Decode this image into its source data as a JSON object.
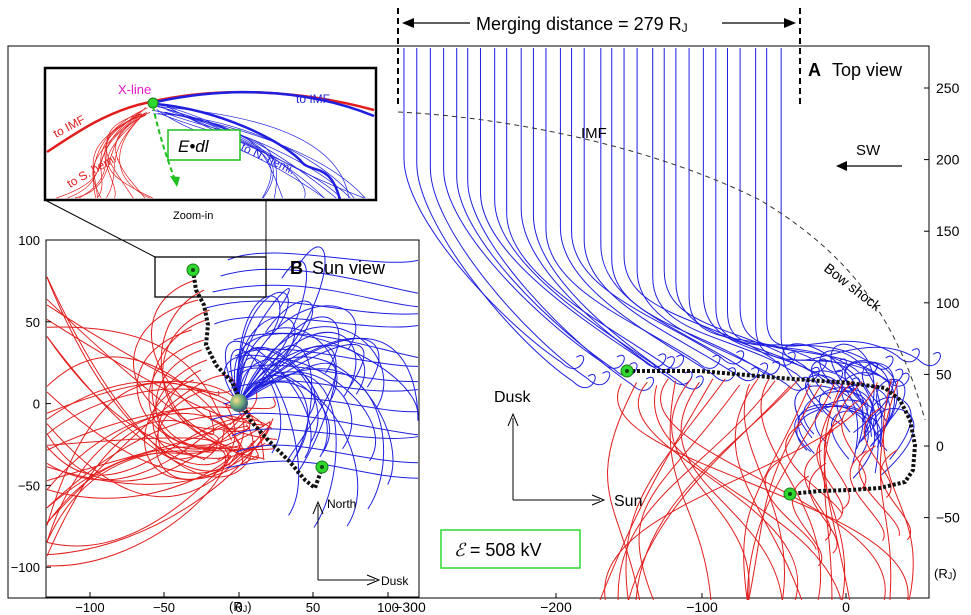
{
  "panel_a": {
    "letter": "A",
    "title": "Top view",
    "merging_label": "Merging distance = 279 R",
    "merging_sub": "J",
    "imf_label": "IMF",
    "sw_label": "SW",
    "bow_shock_label": "Bow shock",
    "right_ticks": [
      "250",
      "200",
      "150",
      "100",
      "50",
      "0",
      "−50"
    ],
    "right_unit": "(R",
    "bottom_ticks": [
      "−300",
      "−200",
      "−100",
      "0"
    ],
    "axis_dusk": "Dusk",
    "axis_sun": "Sun",
    "voltage_symbol": "ℰ",
    "voltage_text": " = 508 kV",
    "colors": {
      "to_north": "#1f1fe0",
      "to_south": "#e21d1d",
      "xline": "#111111",
      "marker": "#2ed82e"
    }
  },
  "panel_b": {
    "letter": "B",
    "title": "Sun view",
    "left_ticks": [
      "100",
      "50",
      "0",
      "−50",
      "−100"
    ],
    "bottom_ticks": [
      "−100",
      "−50",
      "0",
      "50",
      "100"
    ],
    "bottom_unit": "(R",
    "axis_north": "North",
    "axis_dusk": "Dusk"
  },
  "zoom": {
    "xline_label": "X-line",
    "edl_label": "E•dl",
    "to_imf_left": "to IMF",
    "to_imf_right": "to IMF",
    "to_s_hemi": "to S. hemi.",
    "to_n_hemi": "to N. hemi.",
    "caption": "Zoom-in",
    "colors": {
      "xline_label": "#e619c9",
      "edl_arrow": "#1fbf1f"
    }
  }
}
